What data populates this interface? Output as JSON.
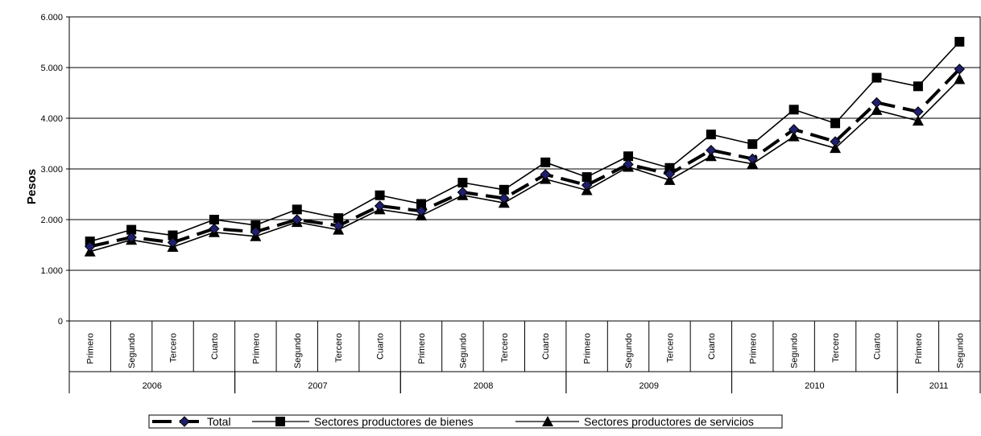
{
  "chart_data": {
    "type": "line",
    "title": "",
    "xlabel": "",
    "ylabel": "Pesos",
    "ylim": [
      0,
      6000
    ],
    "yticks": [
      0,
      1000,
      2000,
      3000,
      4000,
      5000,
      6000
    ],
    "ytick_labels": [
      "0",
      "1.000",
      "2.000",
      "3.000",
      "4.000",
      "5.000",
      "6.000"
    ],
    "grid": true,
    "legend_position": "bottom",
    "categories": [
      "Primero",
      "Segundo",
      "Tercero",
      "Cuarto",
      "Primero",
      "Segundo",
      "Tercero",
      "Cuarto",
      "Primero",
      "Segundo",
      "Tercero",
      "Cuarto",
      "Primero",
      "Segundo",
      "Tercero",
      "Cuarto",
      "Primero",
      "Segundo",
      "Tercero",
      "Cuarto",
      "Primero",
      "Segundo"
    ],
    "groups": [
      {
        "label": "2006",
        "count": 4
      },
      {
        "label": "2007",
        "count": 4
      },
      {
        "label": "2008",
        "count": 4
      },
      {
        "label": "2009",
        "count": 4
      },
      {
        "label": "2010",
        "count": 4
      },
      {
        "label": "2011",
        "count": 2
      }
    ],
    "series": [
      {
        "name": "Total",
        "marker": "diamond",
        "color": "#000000",
        "marker_fill": "#1f1f6b",
        "dash": true,
        "values": [
          1470,
          1650,
          1550,
          1820,
          1760,
          2000,
          1880,
          2270,
          2170,
          2540,
          2420,
          2890,
          2680,
          3090,
          2900,
          3370,
          3200,
          3780,
          3540,
          4310,
          4130,
          4970
        ]
      },
      {
        "name": "Sectores productores de bienes",
        "marker": "square",
        "color": "#000000",
        "marker_fill": "#000000",
        "dash": false,
        "values": [
          1570,
          1800,
          1690,
          2000,
          1890,
          2200,
          2030,
          2480,
          2310,
          2730,
          2590,
          3130,
          2840,
          3250,
          3020,
          3680,
          3490,
          4170,
          3900,
          4800,
          4630,
          5510
        ]
      },
      {
        "name": "Sectores productores de servicios",
        "marker": "triangle",
        "color": "#000000",
        "marker_fill": "#000000",
        "dash": false,
        "values": [
          1370,
          1600,
          1460,
          1750,
          1670,
          1950,
          1800,
          2200,
          2080,
          2480,
          2330,
          2800,
          2580,
          3040,
          2780,
          3250,
          3100,
          3640,
          3410,
          4160,
          3950,
          4770
        ]
      }
    ]
  }
}
